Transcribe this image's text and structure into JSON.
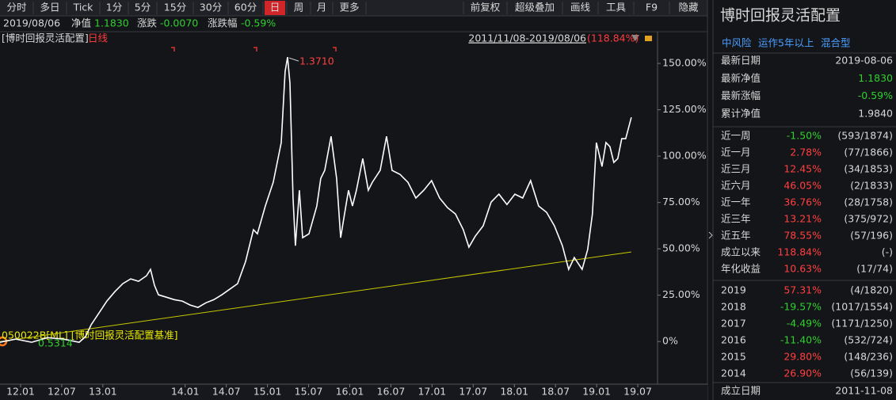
{
  "toolbar": {
    "left": [
      "分时",
      "多日",
      "Tick",
      "1分",
      "5分",
      "15分",
      "30分",
      "60分",
      "日",
      "周",
      "月",
      "更多"
    ],
    "right": [
      "前复权",
      "超级叠加",
      "画线",
      "工具",
      "F9",
      "隐藏"
    ]
  },
  "info": {
    "date": "2019/08/06",
    "nav_label": "净值",
    "nav": "1.1830",
    "change_label": "涨跌",
    "change": "-0.0070",
    "pct_label": "涨跌幅",
    "pct": "-0.59%"
  },
  "chart_data": {
    "type": "line",
    "period_label": "日线",
    "period": "2011/11/08-2019/08/06",
    "period_return": "(118.84%)",
    "series": [
      {
        "name": "[博时回报灵活配置]",
        "color": "#ffffff",
        "x": [
          2011.75,
          2011.942,
          2012.135,
          2012.327,
          2012.52,
          2012.712,
          2012.789,
          2012.857,
          2012.953,
          2013.049,
          2013.146,
          2013.242,
          2013.338,
          2013.434,
          2013.531,
          2013.579,
          2013.627,
          2013.675,
          2013.771,
          2013.867,
          2013.964,
          2014.06,
          2014.156,
          2014.252,
          2014.349,
          2014.445,
          2014.541,
          2014.637,
          2014.734,
          2014.83,
          2014.878,
          2014.974,
          2015.07,
          2015.167,
          2015.215,
          2015.244,
          2015.273,
          2015.311,
          2015.34,
          2015.388,
          2015.427,
          2015.504,
          2015.6,
          2015.648,
          2015.696,
          2015.773,
          2015.84,
          2015.889,
          2015.937,
          2015.985,
          2016.033,
          2016.081,
          2016.158,
          2016.225,
          2016.274,
          2016.37,
          2016.447,
          2016.514,
          2016.61,
          2016.707,
          2016.803,
          2016.899,
          2016.995,
          2017.092,
          2017.188,
          2017.284,
          2017.38,
          2017.448,
          2017.525,
          2017.621,
          2017.717,
          2017.813,
          2017.91,
          2018.006,
          2018.102,
          2018.198,
          2018.295,
          2018.391,
          2018.487,
          2018.584,
          2018.66,
          2018.728,
          2018.824,
          2018.891,
          2018.949,
          2018.997,
          2019.065,
          2019.113,
          2019.161,
          2019.209,
          2019.257,
          2019.305,
          2019.353,
          2019.421
        ],
        "values": [
          -0.4,
          1.3,
          -0.4,
          2.1,
          1.3,
          -0.4,
          2.6,
          9.0,
          15.4,
          21.8,
          26.9,
          31.2,
          33.8,
          32.5,
          35.5,
          38.9,
          30.3,
          25.2,
          23.9,
          22.6,
          21.8,
          19.7,
          18.4,
          20.9,
          22.6,
          25.2,
          28.2,
          31.2,
          43.2,
          60.3,
          58.1,
          73.1,
          85.9,
          107.3,
          145.7,
          153.4,
          139.3,
          77.4,
          51.7,
          81.6,
          56.0,
          58.1,
          73.1,
          88.0,
          92.3,
          110.7,
          88.0,
          56.0,
          68.8,
          81.6,
          73.1,
          81.6,
          98.7,
          81.6,
          85.9,
          92.3,
          110.7,
          92.3,
          90.2,
          85.9,
          77.4,
          81.6,
          86.8,
          77.4,
          72.2,
          68.8,
          60.3,
          50.9,
          56.8,
          62.4,
          75.2,
          79.5,
          73.9,
          79.5,
          77.4,
          86.8,
          73.1,
          69.7,
          62.4,
          51.7,
          38.9,
          45.3,
          38.9,
          49.6,
          68.8,
          107.3,
          94.4,
          107.3,
          105.1,
          96.6,
          98.7,
          109.4,
          109.4,
          120.9
        ]
      },
      {
        "name": "050022B[ML] [博时回报灵活配置基准]",
        "color": "#c8c800",
        "x": [
          2011.75,
          2019.421
        ],
        "values": [
          0.0,
          48.3
        ]
      }
    ],
    "annotations": [
      {
        "text": "1.3710"
      },
      {
        "text": "0.5314"
      }
    ],
    "xlim": [
      2011.75,
      2019.74
    ],
    "ylim": [
      -23,
      165
    ],
    "xticks": [
      {
        "value": 2012.0,
        "label": "12.01"
      },
      {
        "value": 2012.5,
        "label": "12.07"
      },
      {
        "value": 2013.0,
        "label": "13.01"
      },
      {
        "value": 2014.0,
        "label": "14.01"
      },
      {
        "value": 2014.5,
        "label": "14.07"
      },
      {
        "value": 2015.0,
        "label": "15.01"
      },
      {
        "value": 2015.5,
        "label": "15.07"
      },
      {
        "value": 2016.0,
        "label": "16.01"
      },
      {
        "value": 2016.5,
        "label": "16.07"
      },
      {
        "value": 2017.0,
        "label": "17.01"
      },
      {
        "value": 2017.5,
        "label": "17.07"
      },
      {
        "value": 2018.0,
        "label": "18.01"
      },
      {
        "value": 2018.5,
        "label": "18.07"
      },
      {
        "value": 2019.0,
        "label": "19.01"
      },
      {
        "value": 2019.5,
        "label": "19.07"
      }
    ],
    "yticks": [
      {
        "value": 150,
        "label": "150.00%"
      },
      {
        "value": 125,
        "label": "125.00%"
      },
      {
        "value": 100,
        "label": "100.00%"
      },
      {
        "value": 75,
        "label": "75.00%"
      },
      {
        "value": 50,
        "label": "50.00%"
      },
      {
        "value": 25,
        "label": "25.00%"
      },
      {
        "value": 0,
        "label": "0%"
      }
    ],
    "grid": false
  },
  "panel": {
    "title": "博时回报灵活配置",
    "tags": [
      "中风险",
      "运作5年以上",
      "混合型"
    ],
    "summary": [
      [
        "最新日期",
        "2019-08-06"
      ],
      [
        "最新净值",
        "1.1830"
      ],
      [
        "最新涨幅",
        "-0.59%"
      ],
      [
        "累计净值",
        "1.9840"
      ]
    ],
    "periods": [
      [
        "近一周",
        "-1.50%",
        "(593/1874)"
      ],
      [
        "近一月",
        "2.78%",
        "(77/1866)"
      ],
      [
        "近三月",
        "12.45%",
        "(34/1853)"
      ],
      [
        "近六月",
        "46.05%",
        "(2/1833)"
      ],
      [
        "近一年",
        "36.76%",
        "(28/1758)"
      ],
      [
        "近三年",
        "13.21%",
        "(375/972)"
      ],
      [
        "近五年",
        "78.55%",
        "(57/196)"
      ],
      [
        "成立以来",
        "118.84%",
        "(-)"
      ],
      [
        "年化收益",
        "10.63%",
        "(17/74)"
      ]
    ],
    "years": [
      [
        "2019",
        "57.31%",
        "(4/1820)"
      ],
      [
        "2018",
        "-19.57%",
        "(1017/1554)"
      ],
      [
        "2017",
        "-4.49%",
        "(1171/1250)"
      ],
      [
        "2016",
        "-11.40%",
        "(532/724)"
      ],
      [
        "2015",
        "29.80%",
        "(148/236)"
      ],
      [
        "2014",
        "26.90%",
        "(56/139)"
      ]
    ],
    "footer": [
      "成立日期",
      "2011-11-08"
    ]
  }
}
